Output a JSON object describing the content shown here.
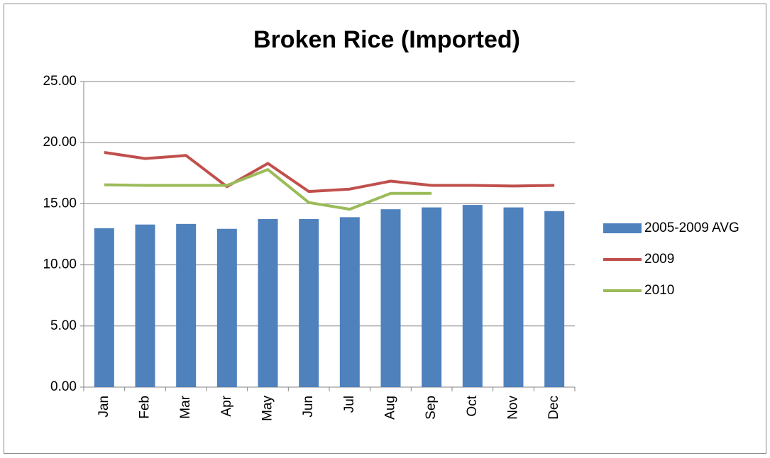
{
  "chart_data": {
    "type": "bar_line",
    "title": "Broken Rice (Imported)",
    "categories": [
      "Jan",
      "Feb",
      "Mar",
      "Apr",
      "May",
      "Jun",
      "Jul",
      "Aug",
      "Sep",
      "Oct",
      "Nov",
      "Dec"
    ],
    "series": [
      {
        "name": "2005-2009 AVG",
        "kind": "bar",
        "color": "#4f81bd",
        "values": [
          13.0,
          13.3,
          13.35,
          12.95,
          13.75,
          13.75,
          13.9,
          14.55,
          14.7,
          14.9,
          14.7,
          14.4
        ]
      },
      {
        "name": "2009",
        "kind": "line",
        "color": "#c0504d",
        "values": [
          19.2,
          18.7,
          18.95,
          16.4,
          18.3,
          16.0,
          16.2,
          16.85,
          16.5,
          16.5,
          16.45,
          16.5
        ]
      },
      {
        "name": "2010",
        "kind": "line",
        "color": "#9bbb59",
        "values": [
          16.55,
          16.5,
          16.5,
          16.5,
          17.8,
          15.1,
          14.55,
          15.85,
          15.85,
          null,
          null,
          null
        ]
      }
    ],
    "ylim": [
      0,
      25
    ],
    "yticks": [
      {
        "value": 0,
        "label": "0.00"
      },
      {
        "value": 5,
        "label": "5.00"
      },
      {
        "value": 10,
        "label": "10.00"
      },
      {
        "value": 15,
        "label": "15.00"
      },
      {
        "value": 20,
        "label": "20.00"
      },
      {
        "value": 25,
        "label": "25.00"
      }
    ],
    "grid": true,
    "legend": "right"
  }
}
